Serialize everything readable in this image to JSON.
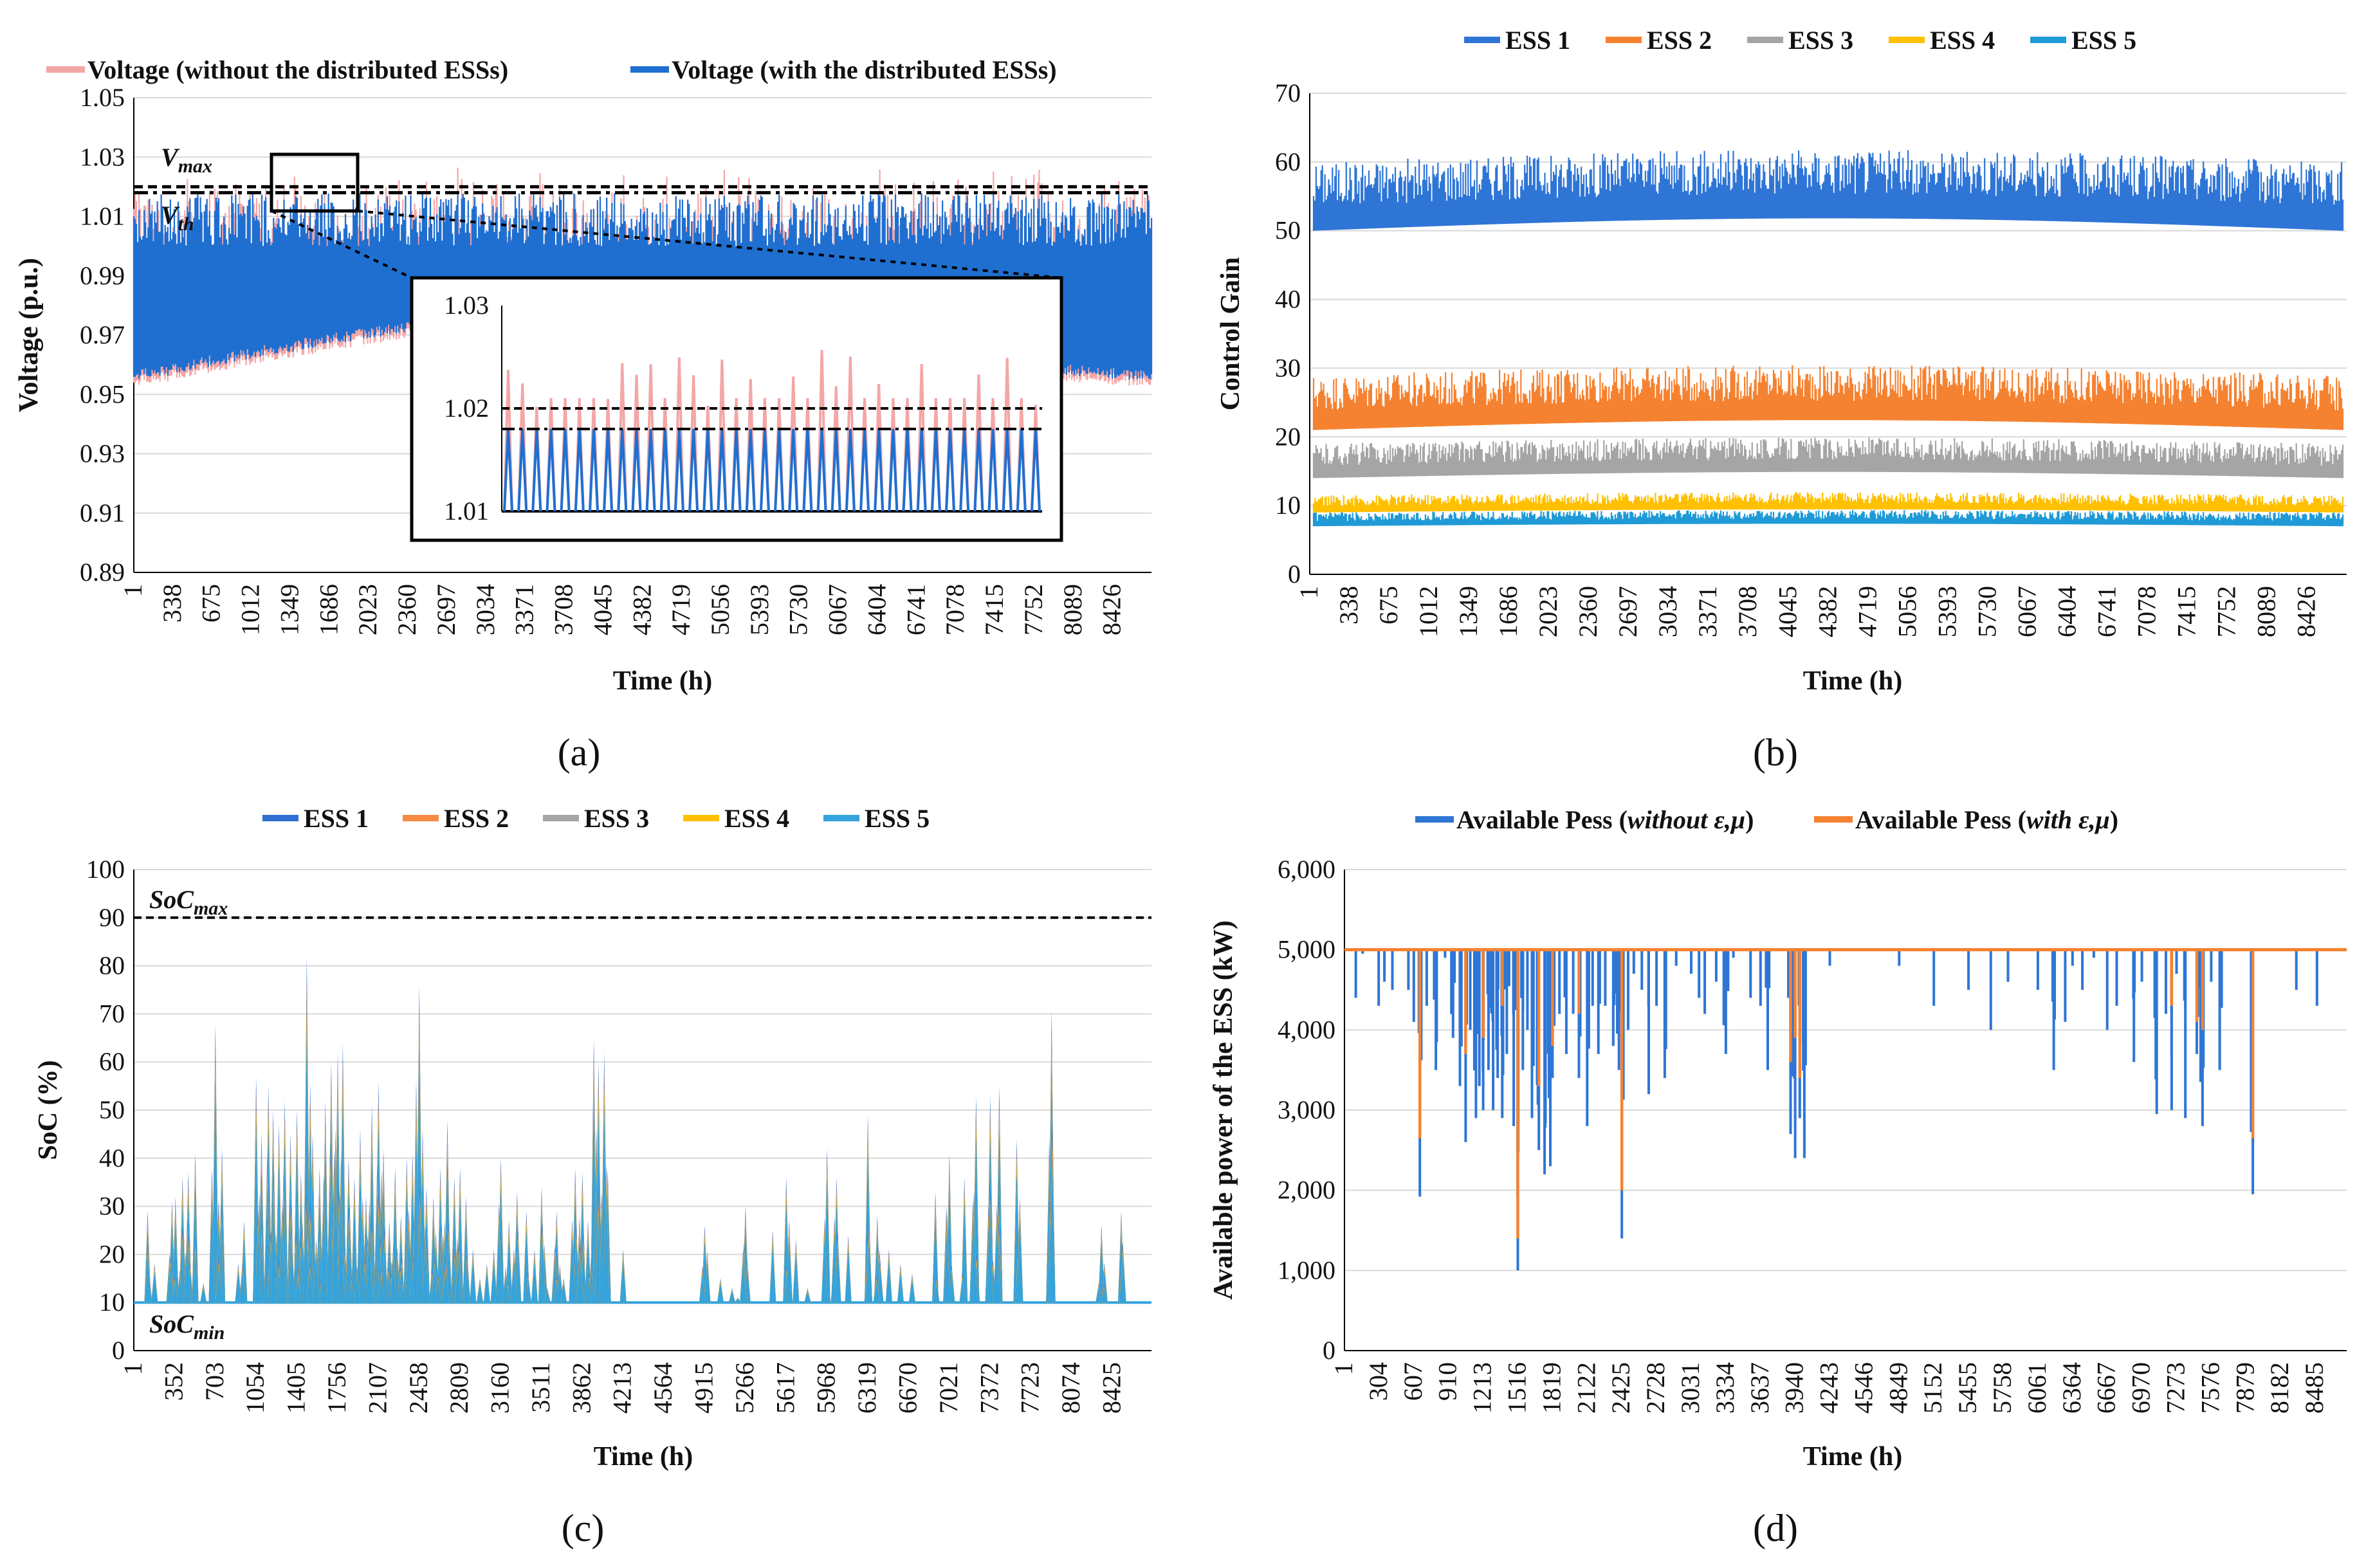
{
  "panels": {
    "a": {
      "label": "(a)"
    },
    "b": {
      "label": "(b)"
    },
    "c": {
      "label": "(c)"
    },
    "d": {
      "label": "(d)"
    }
  },
  "chart_data": [
    {
      "id": "a",
      "type": "line",
      "xlabel": "Time (h)",
      "ylabel": "Voltage (p.u.)",
      "ylim": [
        0.89,
        1.05
      ],
      "yticks": [
        "0.89",
        "0.91",
        "0.93",
        "0.95",
        "0.97",
        "0.99",
        "1.01",
        "1.03",
        "1.05"
      ],
      "xticks": [
        "1",
        "338",
        "675",
        "1012",
        "1349",
        "1686",
        "2023",
        "2360",
        "2697",
        "3034",
        "3371",
        "3708",
        "4045",
        "4382",
        "4719",
        "5056",
        "5393",
        "5730",
        "6067",
        "6404",
        "6741",
        "7078",
        "7415",
        "7752",
        "8089",
        "8426"
      ],
      "xmax": 8760,
      "series": [
        {
          "name": "Voltage (without the distributed ESSs)",
          "color": "#f4a6a6",
          "range": [
            0.953,
            1.03
          ]
        },
        {
          "name": "Voltage (with the distributed ESSs)",
          "color": "#1f6fd1",
          "range": [
            0.953,
            1.018
          ]
        }
      ],
      "annotations": {
        "vmax_label": "V",
        "vmax_sub": "max",
        "vmax": 1.02,
        "vth_label": "V",
        "vth_sub": "th",
        "vth": 1.018
      },
      "inset": {
        "yticks": [
          "1.01",
          "1.02",
          "1.03"
        ],
        "ylim": [
          1.01,
          1.03
        ]
      }
    },
    {
      "id": "b",
      "type": "line",
      "xlabel": "Time (h)",
      "ylabel": "Control Gain",
      "ylim": [
        0,
        70
      ],
      "yticks": [
        "0",
        "10",
        "20",
        "30",
        "40",
        "50",
        "60",
        "70"
      ],
      "xticks": [
        "1",
        "338",
        "675",
        "1012",
        "1349",
        "1686",
        "2023",
        "2360",
        "2697",
        "3034",
        "3371",
        "3708",
        "4045",
        "4382",
        "4719",
        "5056",
        "5393",
        "5730",
        "6067",
        "6404",
        "6741",
        "7078",
        "7415",
        "7752",
        "8089",
        "8426"
      ],
      "xmax": 8760,
      "series": [
        {
          "name": "ESS 1",
          "color": "#2e75d6",
          "range": [
            50,
            60
          ]
        },
        {
          "name": "ESS 2",
          "color": "#f58231",
          "range": [
            21,
            29
          ]
        },
        {
          "name": "ESS 3",
          "color": "#a5a5a5",
          "range": [
            14,
            19
          ]
        },
        {
          "name": "ESS 4",
          "color": "#ffc000",
          "range": [
            9,
            11.5
          ]
        },
        {
          "name": "ESS 5",
          "color": "#1f9ad6",
          "range": [
            7,
            9
          ]
        }
      ]
    },
    {
      "id": "c",
      "type": "line",
      "xlabel": "Time (h)",
      "ylabel": "SoC (%)",
      "ylim": [
        0,
        100
      ],
      "yticks": [
        "0",
        "10",
        "20",
        "30",
        "40",
        "50",
        "60",
        "70",
        "80",
        "90",
        "100"
      ],
      "xticks": [
        "1",
        "352",
        "703",
        "1054",
        "1405",
        "1756",
        "2107",
        "2458",
        "2809",
        "3160",
        "3511",
        "3862",
        "4213",
        "4564",
        "4915",
        "5266",
        "5617",
        "5968",
        "6319",
        "6670",
        "7021",
        "7372",
        "7723",
        "8074",
        "8425"
      ],
      "xmax": 8760,
      "series": [
        {
          "name": "ESS 1",
          "color": "#2e6fd1"
        },
        {
          "name": "ESS 2",
          "color": "#f58a45"
        },
        {
          "name": "ESS 3",
          "color": "#a5a5a5"
        },
        {
          "name": "ESS 4",
          "color": "#ffc000"
        },
        {
          "name": "ESS 5",
          "color": "#35a3dc"
        }
      ],
      "annotations": {
        "socmax_label": "SoC",
        "socmax_sub": "max",
        "socmax": 90,
        "socmin_label": "SoC",
        "socmin_sub": "min",
        "socmin": 10
      },
      "peaks": [
        [
          120,
          29
        ],
        [
          180,
          18
        ],
        [
          330,
          31
        ],
        [
          360,
          32
        ],
        [
          420,
          36
        ],
        [
          470,
          37
        ],
        [
          530,
          41
        ],
        [
          600,
          14
        ],
        [
          703,
          68
        ],
        [
          760,
          42
        ],
        [
          900,
          18
        ],
        [
          950,
          27
        ],
        [
          1054,
          57
        ],
        [
          1100,
          45
        ],
        [
          1160,
          55
        ],
        [
          1200,
          50
        ],
        [
          1250,
          47
        ],
        [
          1300,
          52
        ],
        [
          1350,
          45
        ],
        [
          1405,
          50
        ],
        [
          1440,
          37
        ],
        [
          1490,
          82
        ],
        [
          1540,
          45
        ],
        [
          1600,
          38
        ],
        [
          1650,
          52
        ],
        [
          1700,
          60
        ],
        [
          1756,
          62
        ],
        [
          1800,
          64
        ],
        [
          1850,
          40
        ],
        [
          1900,
          36
        ],
        [
          1950,
          46
        ],
        [
          2000,
          32
        ],
        [
          2050,
          51
        ],
        [
          2107,
          56
        ],
        [
          2150,
          42
        ],
        [
          2200,
          27
        ],
        [
          2250,
          38
        ],
        [
          2300,
          28
        ],
        [
          2350,
          40
        ],
        [
          2400,
          41
        ],
        [
          2458,
          76
        ],
        [
          2520,
          34
        ],
        [
          2580,
          32
        ],
        [
          2640,
          38
        ],
        [
          2700,
          48
        ],
        [
          2760,
          36
        ],
        [
          2809,
          38
        ],
        [
          2860,
          32
        ],
        [
          2920,
          21
        ],
        [
          2980,
          15
        ],
        [
          3040,
          18
        ],
        [
          3100,
          21
        ],
        [
          3160,
          40
        ],
        [
          3230,
          27
        ],
        [
          3300,
          33
        ],
        [
          3380,
          29
        ],
        [
          3450,
          21
        ],
        [
          3511,
          34
        ],
        [
          3560,
          13
        ],
        [
          3640,
          29
        ],
        [
          3700,
          15
        ],
        [
          3800,
          38
        ],
        [
          3862,
          37
        ],
        [
          3910,
          27
        ],
        [
          3960,
          65
        ],
        [
          4000,
          60
        ],
        [
          4050,
          62
        ],
        [
          4213,
          21
        ],
        [
          4915,
          26
        ],
        [
          5050,
          15
        ],
        [
          5150,
          13
        ],
        [
          5200,
          11
        ],
        [
          5266,
          30
        ],
        [
          5500,
          25
        ],
        [
          5617,
          36
        ],
        [
          5700,
          23
        ],
        [
          5800,
          13
        ],
        [
          5968,
          42
        ],
        [
          6050,
          36
        ],
        [
          6150,
          24
        ],
        [
          6319,
          49
        ],
        [
          6400,
          28
        ],
        [
          6500,
          21
        ],
        [
          6600,
          18
        ],
        [
          6700,
          16
        ],
        [
          6900,
          33
        ],
        [
          7021,
          41
        ],
        [
          7150,
          36
        ],
        [
          7250,
          53
        ],
        [
          7372,
          53
        ],
        [
          7450,
          55
        ],
        [
          7600,
          44
        ],
        [
          7900,
          71
        ],
        [
          8330,
          26
        ],
        [
          8500,
          29
        ]
      ]
    },
    {
      "id": "d",
      "type": "bar",
      "xlabel": "Time (h)",
      "ylabel": "Available power of the ESS (kW)",
      "ylim": [
        0,
        6000
      ],
      "yticks": [
        "0",
        "1,000",
        "2,000",
        "3,000",
        "4,000",
        "5,000",
        "6,000"
      ],
      "xticks": [
        "1",
        "304",
        "607",
        "910",
        "1213",
        "1516",
        "1819",
        "2122",
        "2425",
        "2728",
        "3031",
        "3334",
        "3637",
        "3940",
        "4243",
        "4546",
        "4849",
        "5152",
        "5455",
        "5758",
        "6061",
        "6364",
        "6667",
        "6970",
        "7273",
        "7576",
        "7879",
        "8182",
        "8485"
      ],
      "xmax": 8760,
      "baseline": 5000,
      "series": [
        {
          "name": "Available Pess (",
          "name_it": "without ε,μ",
          "name_end": ")",
          "color": "#2e75d6"
        },
        {
          "name": "Available Pess (",
          "name_it": "with ε,μ",
          "name_end": ")",
          "color": "#f58231"
        }
      ],
      "dips_without": [
        [
          100,
          4400
        ],
        [
          160,
          4950
        ],
        [
          300,
          4300
        ],
        [
          350,
          4600
        ],
        [
          420,
          4500
        ],
        [
          560,
          4500
        ],
        [
          607,
          4100
        ],
        [
          660,
          1920
        ],
        [
          720,
          4300
        ],
        [
          800,
          3500
        ],
        [
          880,
          4900
        ],
        [
          950,
          3900
        ],
        [
          1010,
          3300
        ],
        [
          1060,
          2600
        ],
        [
          1100,
          4000
        ],
        [
          1150,
          2900
        ],
        [
          1180,
          3300
        ],
        [
          1213,
          3000
        ],
        [
          1260,
          3500
        ],
        [
          1300,
          3000
        ],
        [
          1340,
          3400
        ],
        [
          1380,
          2900
        ],
        [
          1420,
          3700
        ],
        [
          1480,
          2800
        ],
        [
          1516,
          1000
        ],
        [
          1560,
          3500
        ],
        [
          1600,
          4000
        ],
        [
          1640,
          2900
        ],
        [
          1700,
          2500
        ],
        [
          1750,
          2200
        ],
        [
          1800,
          2300
        ],
        [
          1819,
          3400
        ],
        [
          1880,
          4200
        ],
        [
          1940,
          3700
        ],
        [
          2000,
          4200
        ],
        [
          2050,
          3400
        ],
        [
          2122,
          2800
        ],
        [
          2170,
          4300
        ],
        [
          2220,
          3700
        ],
        [
          2280,
          4300
        ],
        [
          2350,
          3800
        ],
        [
          2400,
          3500
        ],
        [
          2425,
          1400
        ],
        [
          2480,
          4000
        ],
        [
          2530,
          4700
        ],
        [
          2600,
          4500
        ],
        [
          2660,
          3200
        ],
        [
          2728,
          4300
        ],
        [
          2800,
          3400
        ],
        [
          2900,
          4800
        ],
        [
          3031,
          4700
        ],
        [
          3100,
          4400
        ],
        [
          3150,
          4200
        ],
        [
          3250,
          4600
        ],
        [
          3334,
          3700
        ],
        [
          3400,
          4900
        ],
        [
          3550,
          4400
        ],
        [
          3637,
          4300
        ],
        [
          3700,
          3500
        ],
        [
          3880,
          4400
        ],
        [
          3900,
          2700
        ],
        [
          3940,
          2400
        ],
        [
          3980,
          2900
        ],
        [
          4020,
          2400
        ],
        [
          4243,
          4800
        ],
        [
          4849,
          4800
        ],
        [
          5152,
          4300
        ],
        [
          5455,
          4500
        ],
        [
          5650,
          4000
        ],
        [
          5800,
          4600
        ],
        [
          6061,
          4500
        ],
        [
          6200,
          3500
        ],
        [
          6300,
          4100
        ],
        [
          6364,
          4800
        ],
        [
          6450,
          4500
        ],
        [
          6550,
          4900
        ],
        [
          6667,
          4000
        ],
        [
          6750,
          4300
        ],
        [
          6900,
          3600
        ],
        [
          6970,
          4600
        ],
        [
          7100,
          2950
        ],
        [
          7180,
          4200
        ],
        [
          7230,
          3000
        ],
        [
          7273,
          4700
        ],
        [
          7350,
          2900
        ],
        [
          7450,
          3700
        ],
        [
          7500,
          2800
        ],
        [
          7576,
          4600
        ],
        [
          7650,
          3500
        ],
        [
          7940,
          1950
        ],
        [
          8320,
          4500
        ],
        [
          8500,
          4300
        ]
      ],
      "dips_with": [
        [
          660,
          2650
        ],
        [
          1060,
          3700
        ],
        [
          1213,
          3900
        ],
        [
          1380,
          4300
        ],
        [
          1516,
          1400
        ],
        [
          1700,
          3300
        ],
        [
          1819,
          3800
        ],
        [
          2050,
          4200
        ],
        [
          2425,
          2000
        ],
        [
          3900,
          3600
        ],
        [
          3940,
          3900
        ],
        [
          3980,
          3400
        ],
        [
          7230,
          4300
        ],
        [
          7450,
          4100
        ],
        [
          7500,
          4000
        ],
        [
          7940,
          2650
        ]
      ]
    }
  ]
}
